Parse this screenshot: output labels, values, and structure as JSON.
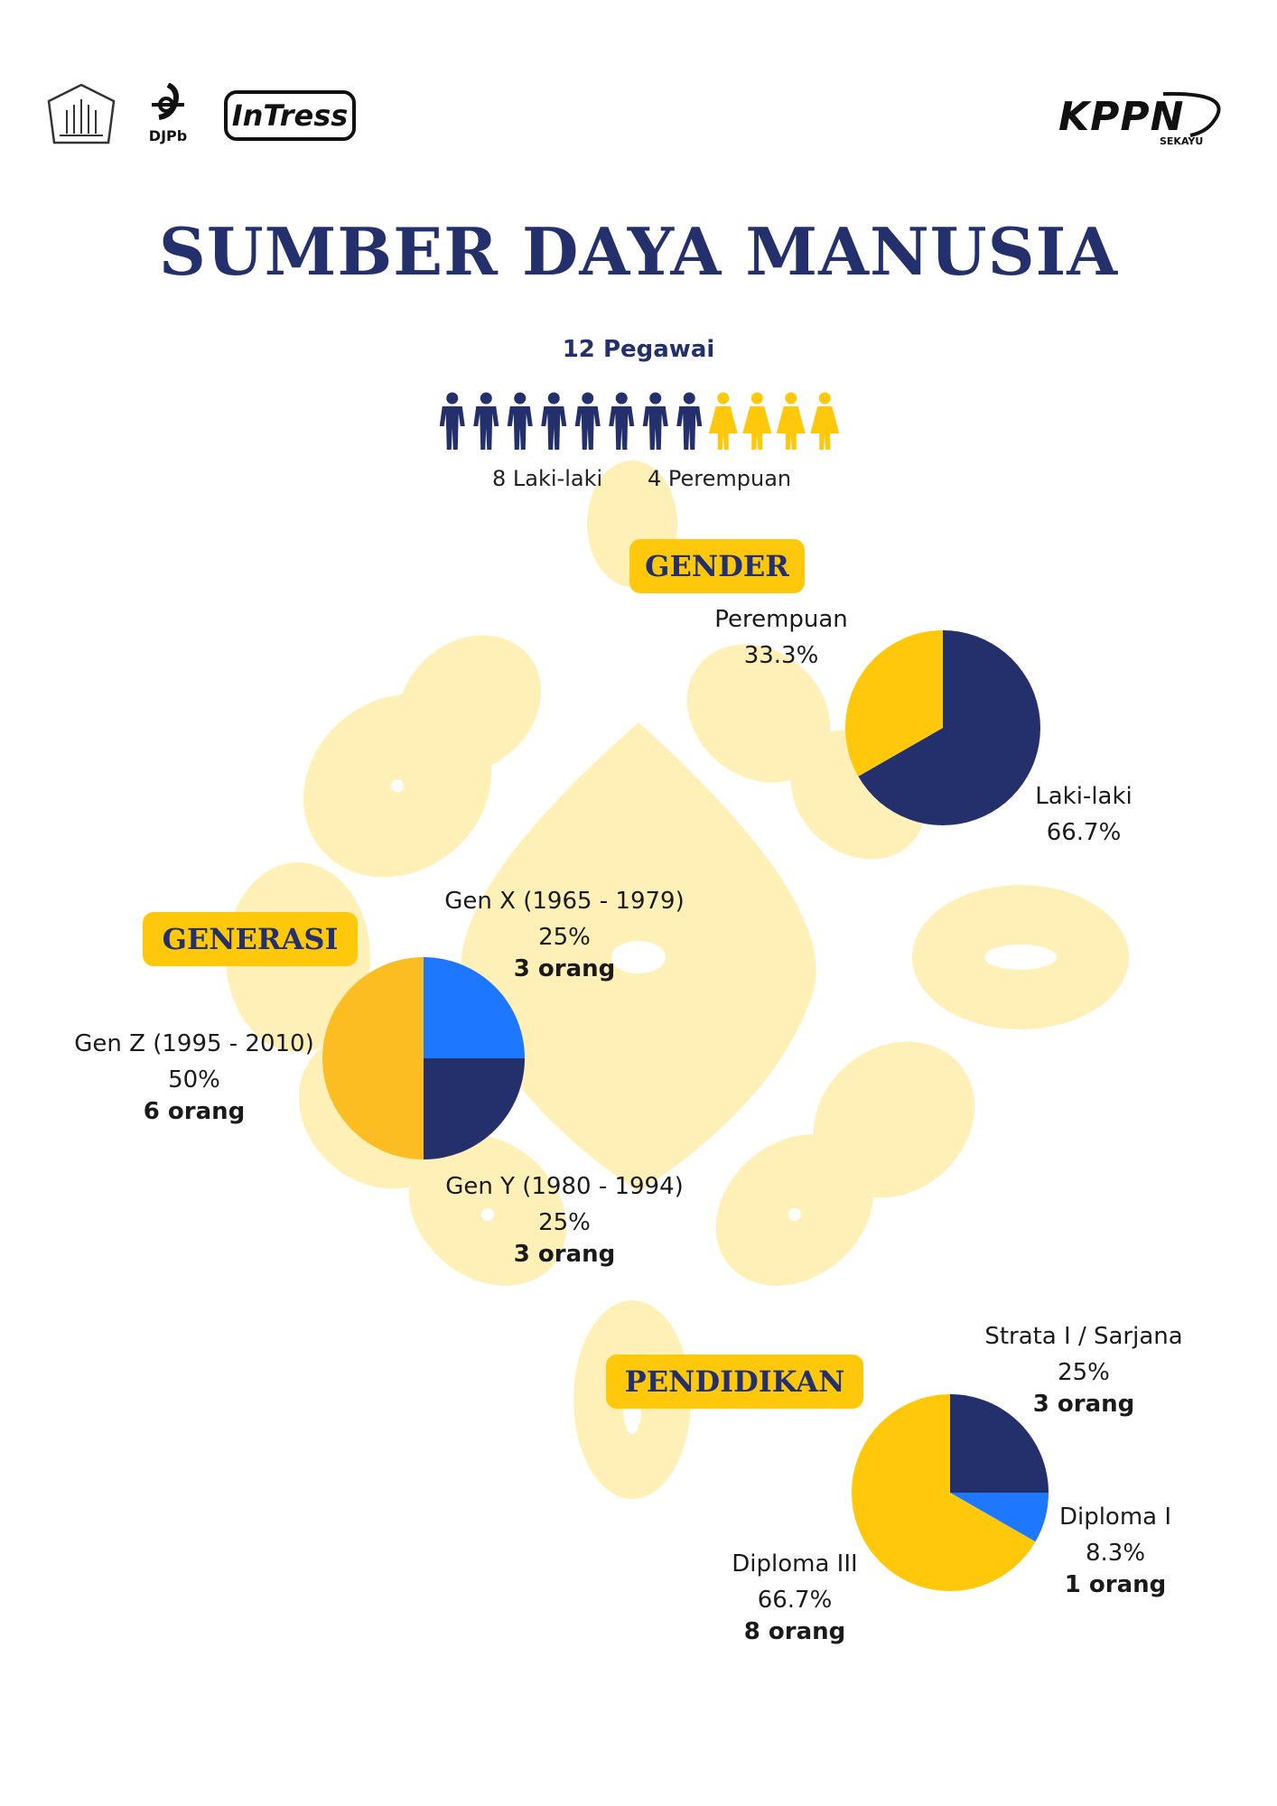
{
  "header": {
    "logos": {
      "djpb": "DJPb",
      "intress": "InTress",
      "kppn": "KPPN",
      "kppn_sub": "SEKAYU"
    }
  },
  "title": "SUMBER DAYA MANUSIA",
  "employees": {
    "total_label": "12 Pegawai",
    "male_count": 8,
    "female_count": 4,
    "male_label": "8 Laki-laki",
    "female_label": "4 Perempuan",
    "male_color": "#23306b",
    "female_color": "#ffc80a"
  },
  "sections": {
    "gender": "GENDER",
    "generasi": "GENERASI",
    "pendidikan": "PENDIDIKAN"
  },
  "chart_data": [
    {
      "type": "pie",
      "title": "GENDER",
      "slices": [
        {
          "label": "Laki-laki",
          "percent": "66.7%",
          "value": 66.7,
          "color": "#23306b"
        },
        {
          "label": "Perempuan",
          "percent": "33.3%",
          "value": 33.3,
          "color": "#ffc80a"
        }
      ]
    },
    {
      "type": "pie",
      "title": "GENERASI",
      "slices": [
        {
          "label": "Gen X (1965 - 1979)",
          "percent": "25%",
          "count": "3 orang",
          "value": 25,
          "color": "#1e78ff"
        },
        {
          "label": "Gen Y (1980 - 1994)",
          "percent": "25%",
          "count": "3 orang",
          "value": 25,
          "color": "#23306b"
        },
        {
          "label": "Gen Z (1995 - 2010)",
          "percent": "50%",
          "count": "6 orang",
          "value": 50,
          "color": "#fbbd22"
        }
      ]
    },
    {
      "type": "pie",
      "title": "PENDIDIKAN",
      "slices": [
        {
          "label": "Strata I / Sarjana",
          "percent": "25%",
          "count": "3 orang",
          "value": 25,
          "color": "#23306b"
        },
        {
          "label": "Diploma I",
          "percent": "8.3%",
          "count": "1 orang",
          "value": 8.3,
          "color": "#1e78ff"
        },
        {
          "label": "Diploma III",
          "percent": "66.7%",
          "count": "8 orang",
          "value": 66.7,
          "color": "#ffc80a"
        }
      ]
    }
  ]
}
